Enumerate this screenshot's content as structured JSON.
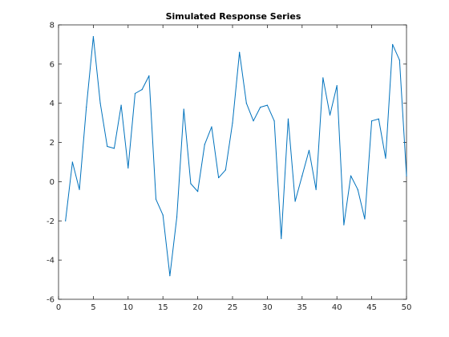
{
  "chart_data": {
    "type": "line",
    "title": "Simulated Response Series",
    "xlabel": "",
    "ylabel": "",
    "xlim": [
      0,
      50
    ],
    "ylim": [
      -6,
      8
    ],
    "xticks": [
      0,
      5,
      10,
      15,
      20,
      25,
      30,
      35,
      40,
      45,
      50
    ],
    "yticks": [
      -6,
      -4,
      -2,
      0,
      2,
      4,
      6,
      8
    ],
    "grid": false,
    "legend": "none",
    "series": [
      {
        "color": "#0072BD",
        "x": [
          1,
          2,
          3,
          4,
          5,
          6,
          7,
          8,
          9,
          10,
          11,
          12,
          13,
          14,
          15,
          16,
          17,
          18,
          19,
          20,
          21,
          22,
          23,
          24,
          25,
          26,
          27,
          28,
          29,
          30,
          31,
          32,
          33,
          34,
          35,
          36,
          37,
          38,
          39,
          40,
          41,
          42,
          43,
          44,
          45,
          46,
          47,
          48,
          49,
          50
        ],
        "y": [
          -2.0,
          1.0,
          -0.4,
          3.8,
          7.4,
          4.0,
          1.8,
          1.7,
          3.9,
          0.7,
          4.5,
          4.7,
          5.4,
          -0.9,
          -1.7,
          -4.8,
          -1.8,
          3.7,
          -0.1,
          -0.5,
          1.9,
          2.8,
          0.2,
          0.6,
          3.0,
          6.6,
          4.0,
          3.1,
          3.8,
          3.9,
          3.1,
          -2.9,
          3.2,
          -1.0,
          0.3,
          1.6,
          -0.4,
          5.3,
          3.4,
          4.9,
          -2.2,
          0.3,
          -0.4,
          -1.9,
          3.1,
          3.2,
          1.2,
          7.0,
          6.2,
          0.3
        ]
      }
    ]
  }
}
